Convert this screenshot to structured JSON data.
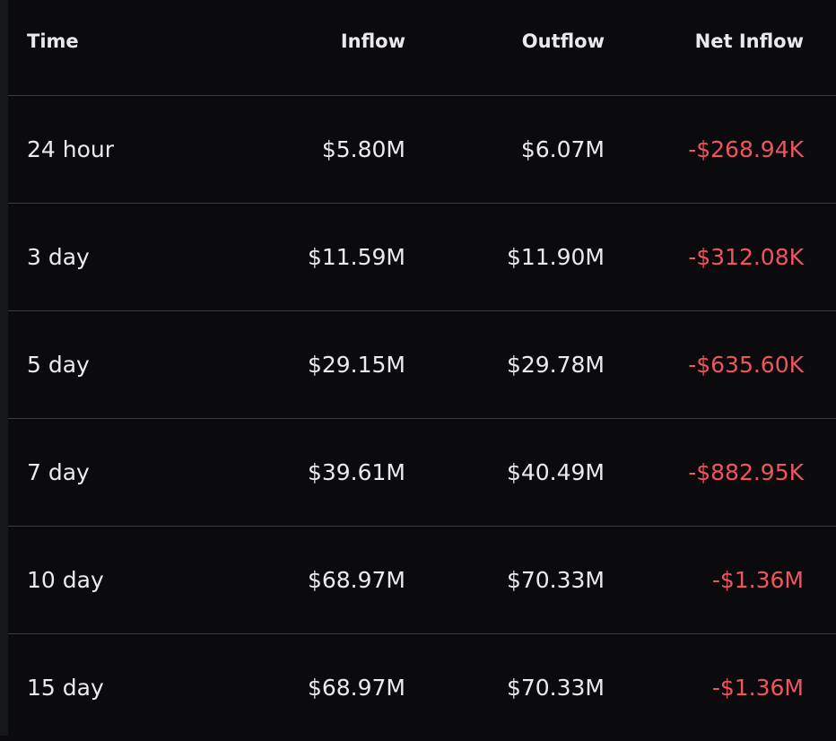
{
  "table": {
    "headers": {
      "time": "Time",
      "inflow": "Inflow",
      "outflow": "Outflow",
      "net_inflow": "Net Inflow"
    },
    "rows": [
      {
        "time": "24 hour",
        "inflow": "$5.80M",
        "outflow": "$6.07M",
        "net_inflow": "-$268.94K"
      },
      {
        "time": "3 day",
        "inflow": "$11.59M",
        "outflow": "$11.90M",
        "net_inflow": "-$312.08K"
      },
      {
        "time": "5 day",
        "inflow": "$29.15M",
        "outflow": "$29.78M",
        "net_inflow": "-$635.60K"
      },
      {
        "time": "7 day",
        "inflow": "$39.61M",
        "outflow": "$40.49M",
        "net_inflow": "-$882.95K"
      },
      {
        "time": "10 day",
        "inflow": "$68.97M",
        "outflow": "$70.33M",
        "net_inflow": "-$1.36M"
      },
      {
        "time": "15 day",
        "inflow": "$68.97M",
        "outflow": "$70.33M",
        "net_inflow": "-$1.36M"
      }
    ]
  },
  "colors": {
    "background": "#0b0b0e",
    "text": "#eaebee",
    "negative": "#f0545f",
    "divider": "#3a3c44"
  }
}
